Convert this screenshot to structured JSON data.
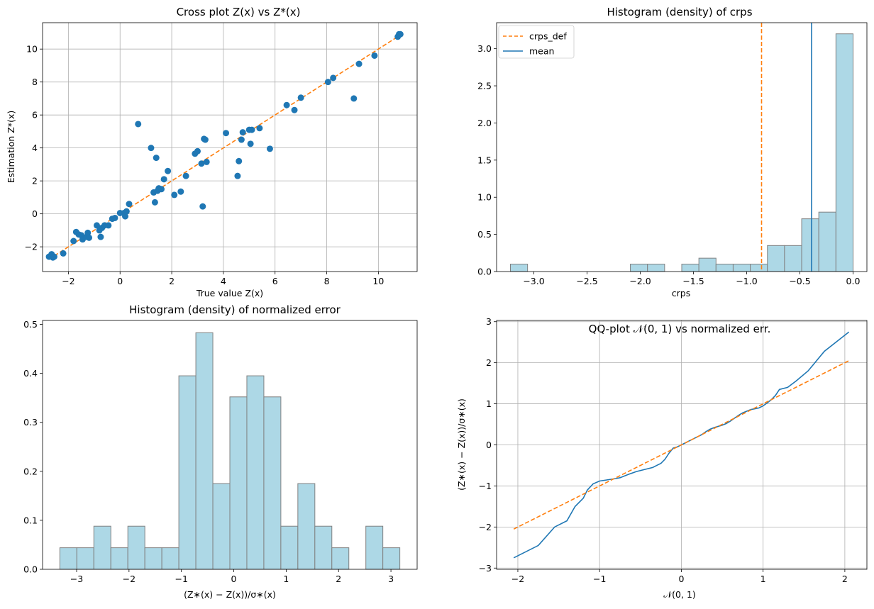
{
  "chart_data": [
    {
      "type": "scatter",
      "title": "Cross plot Z(x) vs Z*(x)",
      "xlabel": "True value Z(x)",
      "ylabel": "Estimation Z*(x)",
      "xlim": [
        -3.0,
        11.5
      ],
      "ylim": [
        -3.5,
        11.6
      ],
      "xticks": [
        -2,
        0,
        2,
        4,
        6,
        8,
        10
      ],
      "xtick_labels": [
        "−2",
        "0",
        "2",
        "4",
        "6",
        "8",
        "10"
      ],
      "yticks": [
        -2,
        0,
        2,
        4,
        6,
        8,
        10
      ],
      "ytick_labels": [
        "−2",
        "0",
        "2",
        "4",
        "6",
        "8",
        "10"
      ],
      "grid": true,
      "point_color": "#1f77b4",
      "line_color": "#ff7f0e",
      "points": [
        [
          -2.75,
          -2.6
        ],
        [
          -2.65,
          -2.45
        ],
        [
          -2.6,
          -2.65
        ],
        [
          -2.55,
          -2.6
        ],
        [
          -2.2,
          -2.4
        ],
        [
          -1.8,
          -1.65
        ],
        [
          -1.7,
          -1.1
        ],
        [
          -1.6,
          -1.25
        ],
        [
          -1.5,
          -1.3
        ],
        [
          -1.45,
          -1.55
        ],
        [
          -1.3,
          -1.4
        ],
        [
          -1.25,
          -1.15
        ],
        [
          -1.2,
          -1.45
        ],
        [
          -0.9,
          -0.7
        ],
        [
          -0.8,
          -1.0
        ],
        [
          -0.75,
          -1.4
        ],
        [
          -0.7,
          -0.85
        ],
        [
          -0.6,
          -0.7
        ],
        [
          -0.45,
          -0.7
        ],
        [
          -0.3,
          -0.3
        ],
        [
          -0.2,
          -0.25
        ],
        [
          0.0,
          0.05
        ],
        [
          0.15,
          0.05
        ],
        [
          0.2,
          -0.15
        ],
        [
          0.25,
          0.15
        ],
        [
          0.35,
          0.6
        ],
        [
          0.7,
          5.45
        ],
        [
          1.2,
          4.0
        ],
        [
          1.3,
          1.3
        ],
        [
          1.35,
          0.7
        ],
        [
          1.4,
          3.4
        ],
        [
          1.45,
          1.4
        ],
        [
          1.5,
          1.55
        ],
        [
          1.6,
          1.5
        ],
        [
          1.7,
          2.1
        ],
        [
          1.85,
          2.6
        ],
        [
          2.1,
          1.15
        ],
        [
          2.35,
          1.35
        ],
        [
          2.55,
          2.3
        ],
        [
          2.9,
          3.65
        ],
        [
          3.0,
          3.8
        ],
        [
          3.15,
          3.05
        ],
        [
          3.2,
          0.45
        ],
        [
          3.25,
          4.55
        ],
        [
          3.3,
          4.5
        ],
        [
          3.35,
          3.15
        ],
        [
          4.1,
          4.9
        ],
        [
          4.55,
          2.3
        ],
        [
          4.6,
          3.2
        ],
        [
          4.7,
          4.5
        ],
        [
          4.75,
          4.95
        ],
        [
          5.0,
          5.1
        ],
        [
          5.05,
          4.25
        ],
        [
          5.1,
          5.1
        ],
        [
          5.4,
          5.2
        ],
        [
          5.8,
          3.95
        ],
        [
          6.45,
          6.6
        ],
        [
          6.75,
          6.3
        ],
        [
          7.0,
          7.05
        ],
        [
          8.05,
          8.0
        ],
        [
          8.25,
          8.25
        ],
        [
          9.05,
          7.0
        ],
        [
          9.25,
          9.1
        ],
        [
          9.85,
          9.6
        ],
        [
          10.75,
          10.75
        ],
        [
          10.8,
          10.9
        ],
        [
          10.85,
          10.9
        ]
      ],
      "reference_line": [
        [
          -2.75,
          -2.75
        ],
        [
          10.85,
          10.85
        ]
      ]
    },
    {
      "type": "bar",
      "title": "Histogram (density) of crps",
      "xlabel": "crps",
      "ylabel": "",
      "xlim": [
        -3.35,
        0.13
      ],
      "ylim": [
        0,
        3.35
      ],
      "xticks": [
        -3.0,
        -2.5,
        -2.0,
        -1.5,
        -1.0,
        -0.5,
        0.0
      ],
      "xtick_labels": [
        "−3.0",
        "−2.5",
        "−2.0",
        "−1.5",
        "−1.0",
        "−0.5",
        "0.0"
      ],
      "yticks": [
        0.0,
        0.5,
        1.0,
        1.5,
        2.0,
        2.5,
        3.0
      ],
      "ytick_labels": [
        "0.0",
        "0.5",
        "1.0",
        "1.5",
        "2.0",
        "2.5",
        "3.0"
      ],
      "grid": false,
      "bar_color": "#add8e6",
      "edge_color": "#808080",
      "bins_start": -3.22,
      "bin_width": 0.161,
      "values": [
        0.1,
        0,
        0,
        0,
        0,
        0,
        0,
        0.1,
        0.1,
        0,
        0.1,
        0.18,
        0.1,
        0.1,
        0.1,
        0.35,
        0.35,
        0.71,
        0.8,
        3.2
      ],
      "vlines": [
        {
          "name": "crps_def",
          "x": -0.86,
          "color": "#ff7f0e",
          "style": "dashed"
        },
        {
          "name": "mean",
          "x": -0.39,
          "color": "#1f77b4",
          "style": "solid"
        }
      ],
      "legend": [
        "crps_def",
        "mean"
      ],
      "legend_position": "upper-left"
    },
    {
      "type": "bar",
      "title": "Histogram (density) of normalized error",
      "xlabel": "(Z∗(x) − Z(x))/σ∗(x)",
      "ylabel": "",
      "xlim": [
        -3.65,
        3.5
      ],
      "ylim": [
        0,
        0.508
      ],
      "xticks": [
        -3,
        -2,
        -1,
        0,
        1,
        2,
        3
      ],
      "xtick_labels": [
        "−3",
        "−2",
        "−1",
        "0",
        "1",
        "2",
        "3"
      ],
      "yticks": [
        0.0,
        0.1,
        0.2,
        0.3,
        0.4,
        0.5
      ],
      "ytick_labels": [
        "0.0",
        "0.1",
        "0.2",
        "0.3",
        "0.4",
        "0.5"
      ],
      "grid": false,
      "bar_color": "#add8e6",
      "edge_color": "#808080",
      "bins_start": -3.32,
      "bin_width": 0.3245,
      "values": [
        0.044,
        0.044,
        0.088,
        0.044,
        0.088,
        0.044,
        0.044,
        0.395,
        0.483,
        0.175,
        0.352,
        0.395,
        0.352,
        0.088,
        0.175,
        0.088,
        0.044,
        0,
        0.088,
        0.044
      ]
    },
    {
      "type": "line",
      "title": "QQ-plot 𝒩(0, 1) vs normalized err.",
      "xlabel": "𝒩(0, 1)",
      "ylabel": "(Z∗(x) − Z(x))/σ∗(x)",
      "xlim": [
        -2.26,
        2.27
      ],
      "ylim": [
        -3.03,
        3.03
      ],
      "xticks": [
        -2,
        -1,
        0,
        1,
        2
      ],
      "xtick_labels": [
        "−2",
        "−1",
        "0",
        "1",
        "2"
      ],
      "yticks": [
        -3,
        -2,
        -1,
        0,
        1,
        2,
        3
      ],
      "ytick_labels": [
        "−3",
        "−2",
        "−1",
        "0",
        "1",
        "2",
        "3"
      ],
      "grid": true,
      "series": [
        {
          "color": "#1f77b4",
          "style": "solid",
          "x": [
            -2.05,
            -1.75,
            -1.55,
            -1.4,
            -1.3,
            -1.2,
            -1.15,
            -1.08,
            -1.0,
            -0.9,
            -0.8,
            -0.75,
            -0.65,
            -0.55,
            -0.45,
            -0.35,
            -0.3,
            -0.25,
            -0.2,
            -0.15,
            -0.1,
            -0.05,
            0.0,
            0.05,
            0.1,
            0.15,
            0.2,
            0.25,
            0.3,
            0.35,
            0.4,
            0.45,
            0.5,
            0.55,
            0.6,
            0.65,
            0.7,
            0.75,
            0.8,
            0.85,
            0.9,
            0.95,
            1.0,
            1.05,
            1.1,
            1.15,
            1.2,
            1.3,
            1.4,
            1.55,
            1.75,
            2.05
          ],
          "y": [
            -2.75,
            -2.45,
            -2.0,
            -1.85,
            -1.5,
            -1.3,
            -1.1,
            -0.95,
            -0.88,
            -0.85,
            -0.82,
            -0.8,
            -0.72,
            -0.65,
            -0.6,
            -0.55,
            -0.5,
            -0.45,
            -0.35,
            -0.2,
            -0.08,
            -0.05,
            0.0,
            0.05,
            0.1,
            0.15,
            0.2,
            0.25,
            0.32,
            0.38,
            0.42,
            0.45,
            0.48,
            0.52,
            0.58,
            0.65,
            0.72,
            0.78,
            0.82,
            0.86,
            0.88,
            0.9,
            0.95,
            1.02,
            1.1,
            1.2,
            1.35,
            1.4,
            1.55,
            1.8,
            2.28,
            2.75
          ]
        },
        {
          "color": "#ff7f0e",
          "style": "dashed",
          "x": [
            -2.05,
            2.05
          ],
          "y": [
            -2.05,
            2.05
          ]
        }
      ]
    }
  ]
}
